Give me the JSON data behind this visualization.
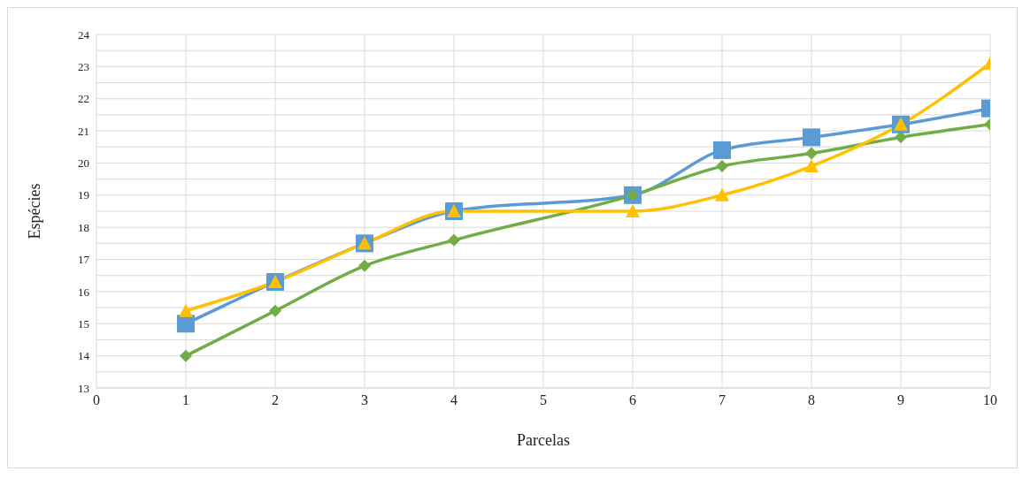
{
  "chart_data": {
    "type": "line",
    "xlabel": "Parcelas",
    "ylabel": "Espécies",
    "x": [
      1,
      2,
      3,
      4,
      6,
      7,
      8,
      9,
      10
    ],
    "series": [
      {
        "color": "#5b9bd5",
        "marker": "square",
        "values": [
          15,
          16.3,
          17.5,
          18.5,
          19,
          20.4,
          20.8,
          21.2,
          21.7
        ]
      },
      {
        "color": "#70ad47",
        "marker": "diamond",
        "values": [
          14,
          15.4,
          16.8,
          17.6,
          19,
          19.9,
          20.3,
          20.8,
          21.2
        ]
      },
      {
        "color": "#ffc000",
        "marker": "triangle",
        "values": [
          15.4,
          16.3,
          17.5,
          18.5,
          18.5,
          19,
          19.9,
          21.2,
          23.1
        ]
      }
    ],
    "xlim": [
      0,
      10
    ],
    "xticks": [
      0,
      1,
      2,
      3,
      4,
      5,
      6,
      7,
      8,
      9,
      10
    ],
    "ylim": [
      13,
      24
    ],
    "yticks": [
      13,
      {
        "value": 13.5,
        "label": null
      },
      14,
      {
        "value": 14.5,
        "label": null
      },
      15,
      {
        "value": 15.5,
        "label": null
      },
      16,
      {
        "value": 16.5,
        "label": null
      },
      17,
      {
        "value": 17.5,
        "label": null
      },
      18,
      {
        "value": 18.5,
        "label": null
      },
      19,
      {
        "value": 19.5,
        "label": null
      },
      20,
      {
        "value": 20.5,
        "label": null
      },
      21,
      {
        "value": 21.5,
        "label": null
      },
      22,
      {
        "value": 22.5,
        "label": null
      },
      23,
      {
        "value": 23.5,
        "label": null
      },
      24
    ],
    "grid": true,
    "line_style": "solid",
    "legend": false
  }
}
